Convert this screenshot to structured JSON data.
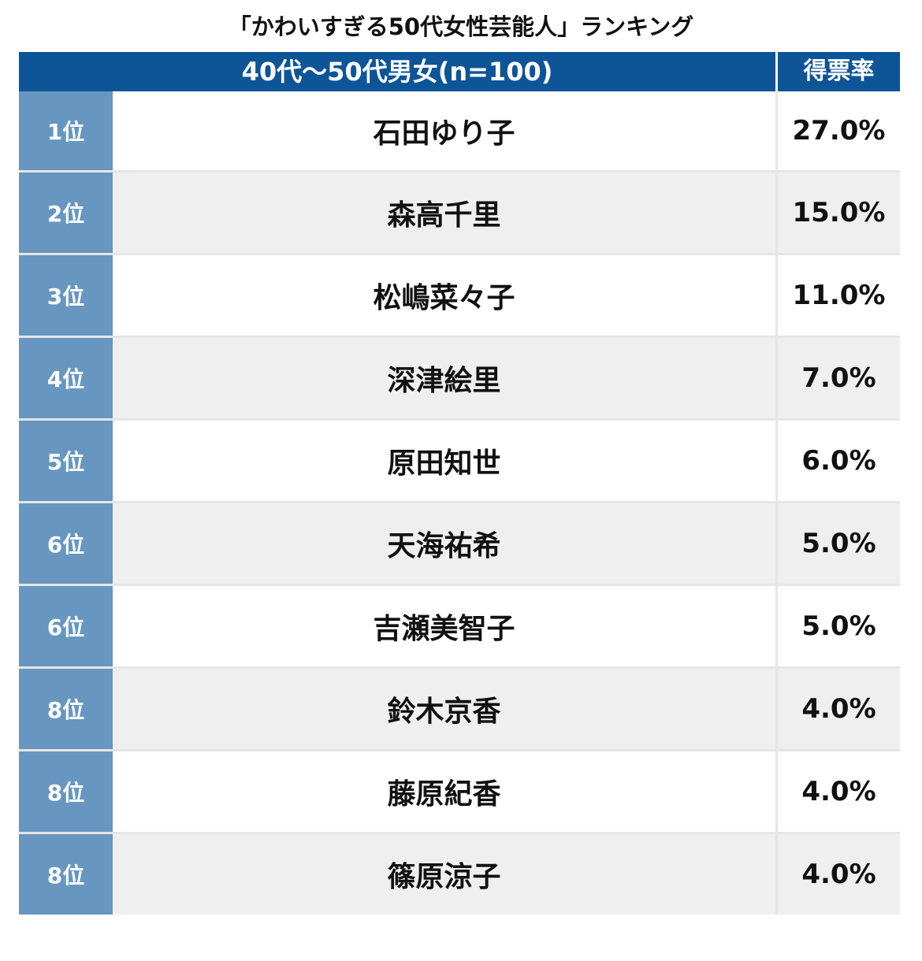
{
  "chart_data": {
    "type": "table",
    "title": "「かわいすぎる50代女性芸能人」ランキング",
    "header": {
      "group": "40代〜50代男女(n=100)",
      "rate": "得票率"
    },
    "rows": [
      {
        "rank": "1位",
        "name": "石田ゆり子",
        "rate": "27.0%",
        "value": 27.0
      },
      {
        "rank": "2位",
        "name": "森高千里",
        "rate": "15.0%",
        "value": 15.0
      },
      {
        "rank": "3位",
        "name": "松嶋菜々子",
        "rate": "11.0%",
        "value": 11.0
      },
      {
        "rank": "4位",
        "name": "深津絵里",
        "rate": "7.0%",
        "value": 7.0
      },
      {
        "rank": "5位",
        "name": "原田知世",
        "rate": "6.0%",
        "value": 6.0
      },
      {
        "rank": "6位",
        "name": "天海祐希",
        "rate": "5.0%",
        "value": 5.0
      },
      {
        "rank": "6位",
        "name": "吉瀬美智子",
        "rate": "5.0%",
        "value": 5.0
      },
      {
        "rank": "8位",
        "name": "鈴木京香",
        "rate": "4.0%",
        "value": 4.0
      },
      {
        "rank": "8位",
        "name": "藤原紀香",
        "rate": "4.0%",
        "value": 4.0
      },
      {
        "rank": "8位",
        "name": "篠原涼子",
        "rate": "4.0%",
        "value": 4.0
      }
    ],
    "colors": {
      "header": "#0d5597",
      "rank_cell": "#6797c1",
      "row_alt": "#efefef"
    }
  }
}
